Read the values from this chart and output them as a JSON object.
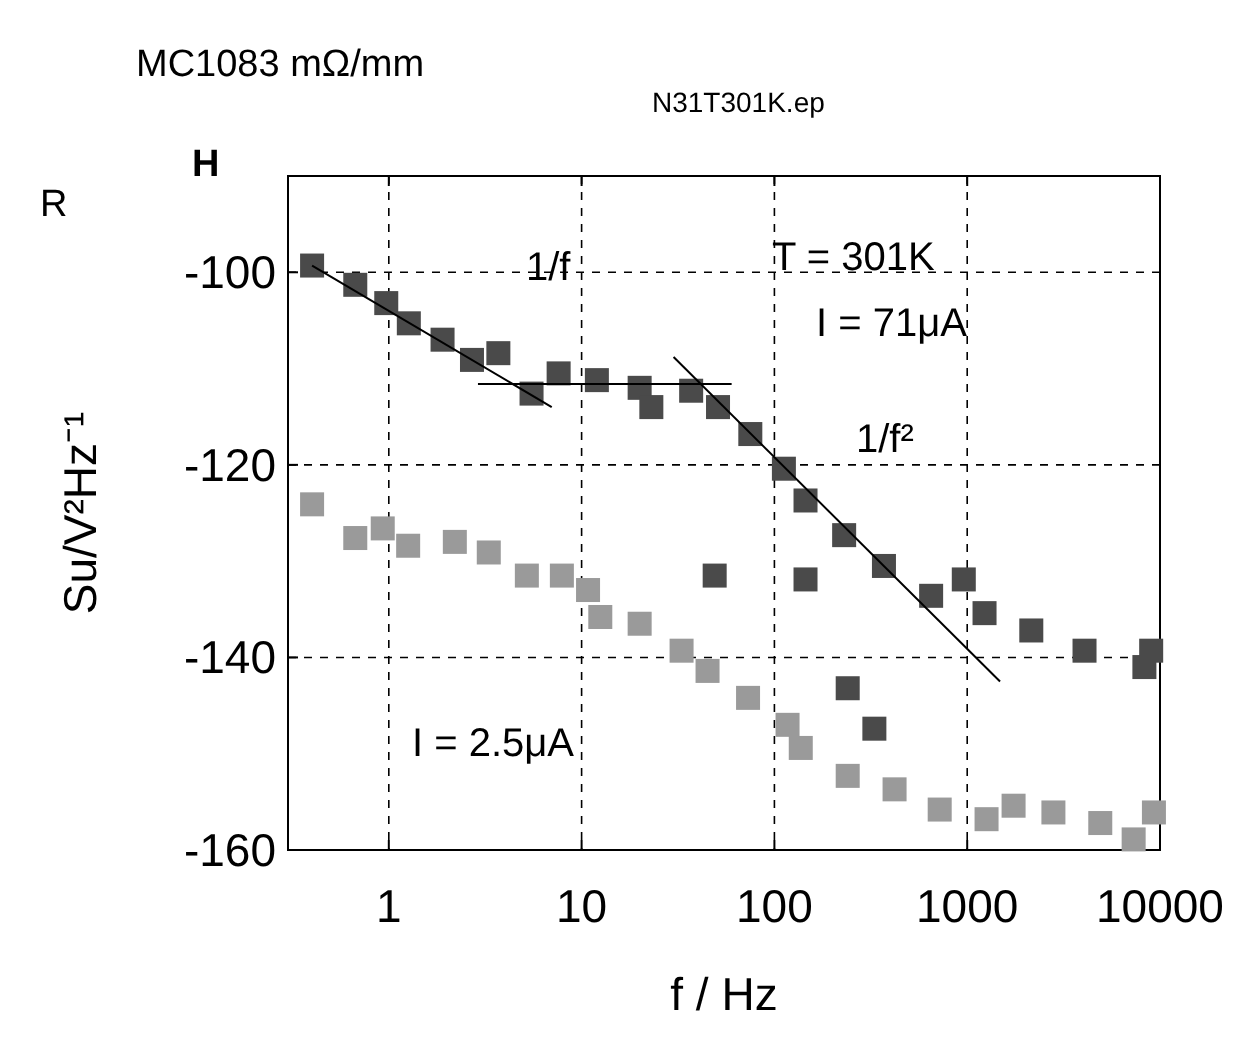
{
  "chart_data": {
    "type": "scatter",
    "title": "MC1083 mΩ/mm",
    "subtitle": "N31T301K.ep",
    "xlabel": "f / Hz",
    "ylabel": "Su/V²Hz⁻¹",
    "log": "x",
    "xlim": [
      0.3,
      10000
    ],
    "xticks": [
      1,
      10,
      100,
      1000,
      10000
    ],
    "ylim": [
      -160,
      -90
    ],
    "yticks": [
      -100,
      -120,
      -140,
      -160
    ],
    "grid": true,
    "marker": "square",
    "series": [
      {
        "color": "#4a4a4a",
        "x": [
          0.4,
          0.67,
          0.97,
          1.27,
          1.9,
          2.7,
          3.7,
          5.5,
          7.6,
          12,
          20,
          23,
          37,
          51,
          75,
          112,
          145,
          230,
          370,
          650,
          960,
          1230,
          2150,
          4060,
          8300,
          9000,
          49,
          145,
          240,
          330
        ],
        "values": [
          -99.3,
          -101.3,
          -103.2,
          -105.3,
          -107,
          -109.1,
          -108.4,
          -112.6,
          -110.5,
          -111.2,
          -112,
          -114,
          -112.3,
          -114,
          -116.8,
          -120.4,
          -123.7,
          -127.3,
          -130.5,
          -133.6,
          -131.9,
          -135.4,
          -137.2,
          -139.3,
          -141,
          -139.3,
          -131.5,
          -131.9,
          -143.2,
          -147.4
        ]
      },
      {
        "color": "#9a9a9a",
        "x": [
          0.4,
          0.67,
          0.93,
          1.26,
          2.2,
          3.3,
          5.2,
          7.9,
          10.8,
          12.5,
          20,
          33,
          45,
          73,
          117,
          137,
          240,
          420,
          720,
          1260,
          1740,
          2800,
          4900,
          7300,
          9300
        ],
        "values": [
          -124.1,
          -127.6,
          -126.6,
          -128.4,
          -128,
          -129.1,
          -131.5,
          -131.5,
          -133,
          -135.8,
          -136.5,
          -139.3,
          -141.4,
          -144.2,
          -147,
          -149.4,
          -152.3,
          -153.7,
          -155.8,
          -156.8,
          -155.4,
          -156.1,
          -157.2,
          -158.9,
          -156.1
        ]
      },
      {
        "type": "line",
        "color": "#000000",
        "marker": "none",
        "x": [
          0.4,
          7
        ],
        "values": [
          -99.3,
          -114
        ]
      },
      {
        "type": "line",
        "color": "#000000",
        "marker": "none",
        "x": [
          2.9,
          60
        ],
        "values": [
          -111.6,
          -111.6
        ]
      },
      {
        "type": "line",
        "color": "#000000",
        "marker": "none",
        "x": [
          30,
          1480
        ],
        "values": [
          -108.8,
          -142.5
        ]
      }
    ],
    "annotations": [
      "R",
      "H",
      "1/f",
      "T = 301K",
      "I = 71μA",
      "1/f²",
      "I = 2.5μA"
    ]
  }
}
